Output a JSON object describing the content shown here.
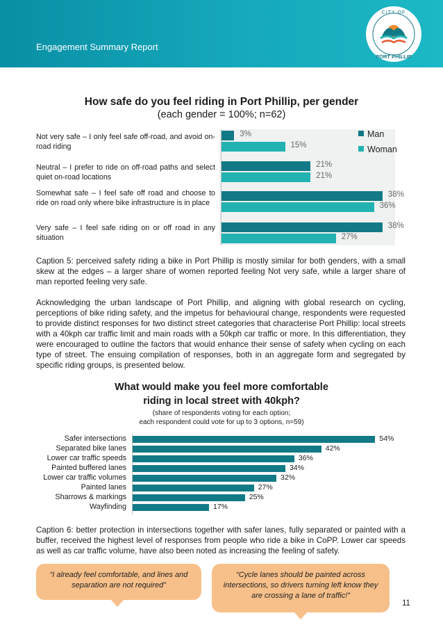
{
  "header": {
    "title": "Engagement Summary Report",
    "logo_text_top": "CITY OF",
    "logo_text_bottom": "PORT PHILLIP"
  },
  "chart1": {
    "title": "How safe do you feel riding in Port Phillip, per gender",
    "subtitle": "(each gender = 100%; n=62)",
    "legend": {
      "man": "Man",
      "woman": "Woman"
    },
    "rows": [
      {
        "label": "Not very safe – I only feel safe off-road, and avoid on-road riding",
        "man": "3%",
        "woman": "15%"
      },
      {
        "label": "Neutral – I prefer to ride on off-road paths and select quiet on-road locations",
        "man": "21%",
        "woman": "21%"
      },
      {
        "label": "Somewhat safe – I feel safe off road and choose to ride on road only where bike infrastructure is in place",
        "man": "38%",
        "woman": "36%"
      },
      {
        "label": "Very safe – I feel safe riding on or off road in any situation",
        "man": "38%",
        "woman": "27%"
      }
    ]
  },
  "chart_data": [
    {
      "type": "bar",
      "orientation": "horizontal",
      "title": "How safe do you feel riding in Port Phillip, per gender",
      "subtitle": "(each gender = 100%; n=62)",
      "categories": [
        "Not very safe – I only feel safe off-road, and avoid on-road riding",
        "Neutral – I prefer to ride on off-road paths and select quiet on-road locations",
        "Somewhat safe – I feel safe off road and choose to ride on road only where bike infrastructure is in place",
        "Very safe – I feel safe riding on or off road in any situation"
      ],
      "series": [
        {
          "name": "Man",
          "values": [
            3,
            21,
            38,
            38
          ],
          "color": "#127a86"
        },
        {
          "name": "Woman",
          "values": [
            15,
            21,
            36,
            27
          ],
          "color": "#22b2b2"
        }
      ],
      "unit": "%",
      "legend": "top-right"
    },
    {
      "type": "bar",
      "orientation": "horizontal",
      "title": "What would make you feel more comfortable riding in local street with 40kph?",
      "subtitle": "(share of respondents voting for each option; each respondent could vote for up to 3 options, n=59)",
      "categories": [
        "Safer intersections",
        "Separated bike lanes",
        "Lower car traffic speeds",
        "Painted buffered lanes",
        "Lower car traffic volumes",
        "Painted lanes",
        "Sharrows & markings",
        "Wayfinding"
      ],
      "values": [
        54,
        42,
        36,
        34,
        32,
        27,
        25,
        17
      ],
      "unit": "%",
      "color": "#127a86"
    }
  ],
  "caption5": "Caption 5: perceived safety riding a bike in Port Phillip is mostly similar for both genders, with a small skew at the edges – a larger share of women reported feeling Not very safe, while a larger share of man reported feeling very safe.",
  "paragraph": "Acknowledging the urban landscape of Port Phillip, and aligning with global research on cycling, perceptions of bike riding safety, and the impetus for behavioural change, respondents were requested to provide distinct responses for two distinct street categories that characterise Port Phillip: local streets with a 40kph car traffic limit and main roads with a 50kph car traffic or more. In this differentiation, they were encouraged to outline the factors that would enhance their sense of safety when cycling on each type of street. The ensuing compilation of responses, both in an aggregate form and segregated by specific riding groups, is presented below.",
  "chart2": {
    "title_line1": "What would make you feel more comfortable",
    "title_line2": "riding in local street with 40kph?",
    "subtitle_line1": "(share of respondents voting for each option;",
    "subtitle_line2": "each respondent could vote for up to 3 options, n=59)",
    "rows": [
      {
        "label": "Safer intersections",
        "pct": "54%"
      },
      {
        "label": "Separated bike lanes",
        "pct": "42%"
      },
      {
        "label": "Lower car traffic speeds",
        "pct": "36%"
      },
      {
        "label": "Painted buffered lanes",
        "pct": "34%"
      },
      {
        "label": "Lower car traffic volumes",
        "pct": "32%"
      },
      {
        "label": "Painted lanes",
        "pct": "27%"
      },
      {
        "label": "Sharrows & markings",
        "pct": "25%"
      },
      {
        "label": "Wayfinding",
        "pct": "17%"
      }
    ]
  },
  "caption6": "Caption 6: better protection in intersections together with safer lanes, fully separated or painted with a buffer, received the highest level of responses from people who ride a bike in CoPP. Lower car speeds as well as car traffic volume, have also been noted as increasing the feeling of safety.",
  "quotes": [
    "“I already feel comfortable, and lines and separation are not required”",
    "“Cycle lanes should be painted across intersections, so drivers turning left know they are crossing a lane of traffic!”"
  ],
  "page_number": "11",
  "colors": {
    "header": "#0a8fa5",
    "man": "#127a86",
    "woman": "#22b2b2",
    "quote_bg": "#f7c08a"
  }
}
